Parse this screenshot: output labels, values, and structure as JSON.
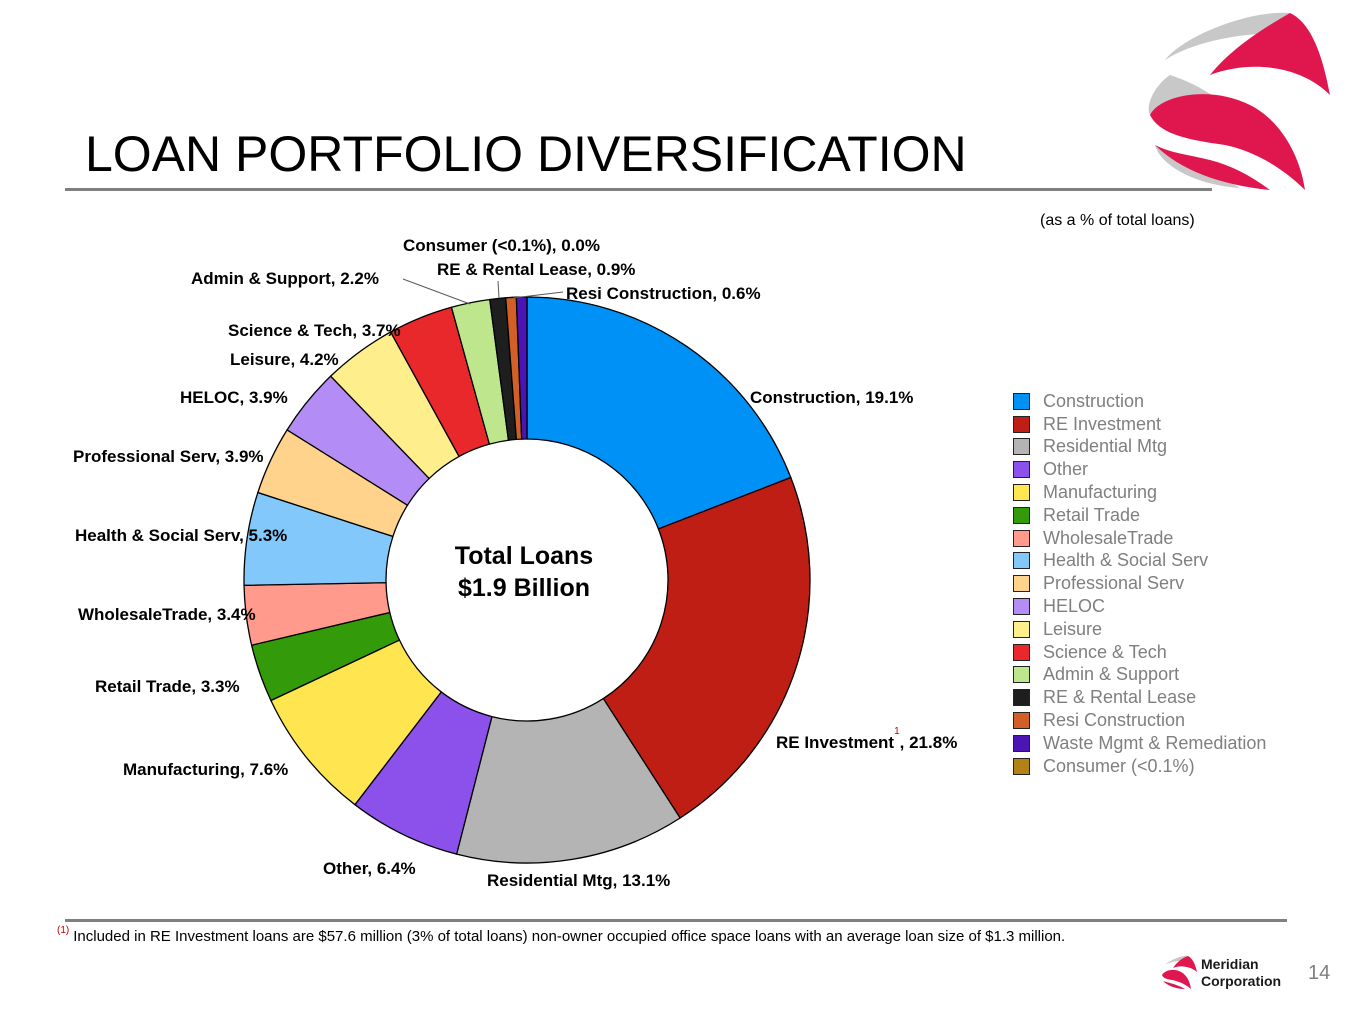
{
  "page": {
    "title": "LOAN PORTFOLIO DIVERSIFICATION",
    "subtitle": "(as a % of total loans)",
    "footnote_marker": "(1)",
    "footnote": "Included in RE Investment loans are $57.6 million (3% of total loans) non-owner occupied office space loans with an average loan size of $1.3 million.",
    "page_number": "14",
    "corp_name_line1": "Meridian",
    "corp_name_line2": "Corporation"
  },
  "chart_data": {
    "type": "pie",
    "donut": true,
    "center_label_line1": "Total Loans",
    "center_label_line2": "$1.9 Billion",
    "legend_position": "right",
    "slices": [
      {
        "name": "Construction",
        "label": "Construction, 19.1%",
        "value": 19.1,
        "color": "#0091f7"
      },
      {
        "name": "RE Investment",
        "label": "RE Investment",
        "label_suffix": ", 21.8%",
        "footnote_ref": "1",
        "value": 21.8,
        "color": "#be1e14"
      },
      {
        "name": "Residential Mtg",
        "label": "Residential Mtg, 13.1%",
        "value": 13.1,
        "color": "#b4b4b4"
      },
      {
        "name": "Other",
        "label": "Other, 6.4%",
        "value": 6.4,
        "color": "#8c50eb"
      },
      {
        "name": "Manufacturing",
        "label": "Manufacturing, 7.6%",
        "value": 7.6,
        "color": "#ffe650"
      },
      {
        "name": "Retail Trade",
        "label": "Retail Trade, 3.3%",
        "value": 3.3,
        "color": "#339a0a"
      },
      {
        "name": "WholesaleTrade",
        "label": "WholesaleTrade, 3.4%",
        "value": 3.4,
        "color": "#ff9a8c"
      },
      {
        "name": "Health & Social Serv",
        "label": "Health & Social Serv, 5.3%",
        "value": 5.3,
        "color": "#82c8fa"
      },
      {
        "name": "Professional Serv",
        "label": "Professional Serv, 3.9%",
        "value": 3.9,
        "color": "#ffd38c"
      },
      {
        "name": "HELOC",
        "label": "HELOC, 3.9%",
        "value": 3.9,
        "color": "#b48cf5"
      },
      {
        "name": "Leisure",
        "label": "Leisure, 4.2%",
        "value": 4.2,
        "color": "#ffee8c"
      },
      {
        "name": "Science & Tech",
        "label": "Science & Tech, 3.7%",
        "value": 3.7,
        "color": "#e8282a"
      },
      {
        "name": "Admin & Support",
        "label": "Admin & Support, 2.2%",
        "value": 2.2,
        "color": "#bee68c"
      },
      {
        "name": "Consumer (<0.1%)",
        "label": "Consumer (<0.1%), 0.0%",
        "value": 0.0,
        "color": "#b48214"
      },
      {
        "name": "RE & Rental Lease",
        "label": "RE & Rental Lease, 0.9%",
        "value": 0.9,
        "color": "#1e1e1e"
      },
      {
        "name": "Resi Construction",
        "label": "Resi Construction, 0.6%",
        "value": 0.6,
        "color": "#d25f28"
      },
      {
        "name": "Waste Mgmt & Remediation",
        "label": "",
        "value": 0.6,
        "color": "#4b14b4"
      }
    ],
    "legend": [
      {
        "label": "Construction",
        "color": "#0091f7"
      },
      {
        "label": "RE Investment",
        "color": "#be1e14"
      },
      {
        "label": "Residential Mtg",
        "color": "#b4b4b4"
      },
      {
        "label": "Other",
        "color": "#8c50eb"
      },
      {
        "label": "Manufacturing",
        "color": "#ffe650"
      },
      {
        "label": "Retail Trade",
        "color": "#339a0a"
      },
      {
        "label": "WholesaleTrade",
        "color": "#ff9a8c"
      },
      {
        "label": "Health & Social Serv",
        "color": "#82c8fa"
      },
      {
        "label": "Professional Serv",
        "color": "#ffd38c"
      },
      {
        "label": "HELOC",
        "color": "#b48cf5"
      },
      {
        "label": "Leisure",
        "color": "#ffee8c"
      },
      {
        "label": "Science & Tech",
        "color": "#e8282a"
      },
      {
        "label": "Admin & Support",
        "color": "#bee68c"
      },
      {
        "label": "RE & Rental Lease",
        "color": "#1e1e1e"
      },
      {
        "label": "Resi Construction",
        "color": "#d25f28"
      },
      {
        "label": "Waste Mgmt & Remediation",
        "color": "#4b14b4"
      },
      {
        "label": "Consumer (<0.1%)",
        "color": "#b48214"
      }
    ]
  },
  "brand": {
    "logo_color": "#e0174f",
    "logo_gray": "#bdbdbd"
  }
}
